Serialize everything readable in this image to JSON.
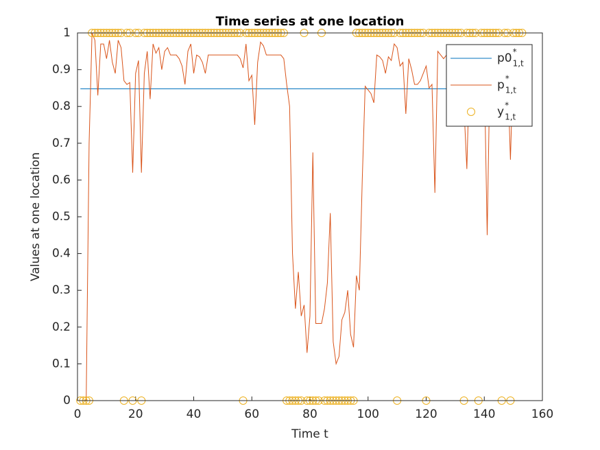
{
  "chart_data": {
    "type": "line",
    "title": "Time series at one location",
    "xlabel": "Time t",
    "ylabel": "Values at one location",
    "xlim": [
      0,
      160
    ],
    "xticks": [
      0,
      20,
      40,
      60,
      80,
      100,
      120,
      140,
      160
    ],
    "ylim": [
      0,
      1
    ],
    "yticks": [
      0,
      0.1,
      0.2,
      0.3,
      0.4,
      0.5,
      0.6,
      0.7,
      0.8,
      0.9,
      1
    ],
    "legend_location": "northeast",
    "x": [
      1,
      2,
      3,
      4,
      5,
      6,
      7,
      8,
      9,
      10,
      11,
      12,
      13,
      14,
      15,
      16,
      17,
      18,
      19,
      20,
      21,
      22,
      23,
      24,
      25,
      26,
      27,
      28,
      29,
      30,
      31,
      32,
      33,
      34,
      35,
      36,
      37,
      38,
      39,
      40,
      41,
      42,
      43,
      44,
      45,
      46,
      47,
      48,
      49,
      50,
      51,
      52,
      53,
      54,
      55,
      56,
      57,
      58,
      59,
      60,
      61,
      62,
      63,
      64,
      65,
      66,
      67,
      68,
      69,
      70,
      71,
      72,
      73,
      74,
      75,
      76,
      77,
      78,
      79,
      80,
      81,
      82,
      83,
      84,
      85,
      86,
      87,
      88,
      89,
      90,
      91,
      92,
      93,
      94,
      95,
      96,
      97,
      98,
      99,
      100,
      101,
      102,
      103,
      104,
      105,
      106,
      107,
      108,
      109,
      110,
      111,
      112,
      113,
      114,
      115,
      116,
      117,
      118,
      119,
      120,
      121,
      122,
      123,
      124,
      125,
      126,
      127,
      128,
      129,
      130,
      131,
      132,
      133,
      134,
      135,
      136,
      137,
      138,
      139,
      140,
      141,
      142,
      143,
      144,
      145,
      146,
      147,
      148,
      149,
      150,
      151,
      152,
      153
    ],
    "series": [
      {
        "name": "p0",
        "name_sup": "*",
        "name_sub": "1,t",
        "style": "line",
        "color": "#0072BD",
        "values": [
          0.848,
          0.848,
          0.848,
          0.848,
          0.848,
          0.848,
          0.848,
          0.848,
          0.848,
          0.848,
          0.848,
          0.848,
          0.848,
          0.848,
          0.848,
          0.848,
          0.848,
          0.848,
          0.848,
          0.848,
          0.848,
          0.848,
          0.848,
          0.848,
          0.848,
          0.848,
          0.848,
          0.848,
          0.848,
          0.848,
          0.848,
          0.848,
          0.848,
          0.848,
          0.848,
          0.848,
          0.848,
          0.848,
          0.848,
          0.848,
          0.848,
          0.848,
          0.848,
          0.848,
          0.848,
          0.848,
          0.848,
          0.848,
          0.848,
          0.848,
          0.848,
          0.848,
          0.848,
          0.848,
          0.848,
          0.848,
          0.848,
          0.848,
          0.848,
          0.848,
          0.848,
          0.848,
          0.848,
          0.848,
          0.848,
          0.848,
          0.848,
          0.848,
          0.848,
          0.848,
          0.848,
          0.848,
          0.848,
          0.848,
          0.848,
          0.848,
          0.848,
          0.848,
          0.848,
          0.848,
          0.848,
          0.848,
          0.848,
          0.848,
          0.848,
          0.848,
          0.848,
          0.848,
          0.848,
          0.848,
          0.848,
          0.848,
          0.848,
          0.848,
          0.848,
          0.848,
          0.848,
          0.848,
          0.848,
          0.848,
          0.848,
          0.848,
          0.848,
          0.848,
          0.848,
          0.848,
          0.848,
          0.848,
          0.848,
          0.848,
          0.848,
          0.848,
          0.848,
          0.848,
          0.848,
          0.848,
          0.848,
          0.848,
          0.848,
          0.848,
          0.848,
          0.848,
          0.848,
          0.848,
          0.848,
          0.848,
          0.848,
          0.848,
          0.848,
          0.848,
          0.848,
          0.848,
          0.848,
          0.848,
          0.848,
          0.848,
          0.848,
          0.848,
          0.848,
          0.848,
          0.848,
          0.848,
          0.848,
          0.848,
          0.848,
          0.848,
          0.848,
          0.848,
          0.848,
          0.848,
          0.848,
          0.848,
          0.848
        ]
      },
      {
        "name": "p",
        "name_sup": "*",
        "name_sub": "1,t",
        "style": "line",
        "color": "#D95319",
        "values": [
          0,
          0,
          0,
          0.7,
          1,
          0.98,
          0.83,
          0.97,
          0.97,
          0.93,
          0.98,
          0.92,
          0.89,
          0.98,
          0.96,
          0.87,
          0.86,
          0.865,
          0.62,
          0.89,
          0.925,
          0.62,
          0.89,
          0.95,
          0.82,
          0.97,
          0.945,
          0.96,
          0.9,
          0.95,
          0.96,
          0.94,
          0.94,
          0.94,
          0.93,
          0.91,
          0.86,
          0.95,
          0.97,
          0.89,
          0.94,
          0.935,
          0.92,
          0.89,
          0.94,
          0.94,
          0.94,
          0.94,
          0.94,
          0.94,
          0.94,
          0.94,
          0.94,
          0.94,
          0.94,
          0.93,
          0.905,
          0.97,
          0.87,
          0.885,
          0.75,
          0.92,
          0.975,
          0.965,
          0.94,
          0.94,
          0.94,
          0.94,
          0.94,
          0.94,
          0.93,
          0.86,
          0.8,
          0.4,
          0.25,
          0.35,
          0.23,
          0.26,
          0.13,
          0.23,
          0.675,
          0.21,
          0.21,
          0.21,
          0.25,
          0.32,
          0.51,
          0.16,
          0.1,
          0.12,
          0.22,
          0.24,
          0.3,
          0.18,
          0.145,
          0.34,
          0.3,
          0.6,
          0.855,
          0.845,
          0.835,
          0.81,
          0.94,
          0.935,
          0.925,
          0.89,
          0.935,
          0.925,
          0.97,
          0.96,
          0.91,
          0.92,
          0.78,
          0.93,
          0.9,
          0.86,
          0.86,
          0.87,
          0.89,
          0.91,
          0.85,
          0.86,
          0.565,
          0.95,
          0.94,
          0.93,
          0.94,
          0.95,
          0.92,
          0.9,
          0.93,
          0.91,
          0.8,
          0.63,
          0.93,
          0.92,
          0.93,
          0.76,
          0.9,
          0.9,
          0.45,
          0.93,
          0.94,
          0.93,
          0.92,
          0.89,
          0.88,
          0.9,
          0.655,
          0.93,
          0.94,
          0.93,
          0.93
        ]
      },
      {
        "name": "y",
        "name_sup": "*",
        "name_sub": "1,t",
        "style": "marker",
        "color": "#EDB120",
        "values": [
          0,
          0,
          0,
          0,
          1,
          1,
          1,
          1,
          1,
          1,
          1,
          1,
          1,
          1,
          1,
          0,
          1,
          1,
          0,
          1,
          1,
          0,
          1,
          1,
          1,
          1,
          1,
          1,
          1,
          1,
          1,
          1,
          1,
          1,
          1,
          1,
          1,
          1,
          1,
          1,
          1,
          1,
          1,
          1,
          1,
          1,
          1,
          1,
          1,
          1,
          1,
          1,
          1,
          1,
          1,
          1,
          0,
          1,
          1,
          1,
          1,
          1,
          1,
          1,
          1,
          1,
          1,
          1,
          1,
          1,
          1,
          0,
          0,
          0,
          0,
          0,
          0,
          1,
          0,
          0,
          0,
          0,
          0,
          1,
          0,
          0,
          0,
          0,
          0,
          0,
          0,
          0,
          0,
          0,
          0,
          1,
          1,
          1,
          1,
          1,
          1,
          1,
          1,
          1,
          1,
          1,
          1,
          1,
          1,
          0,
          1,
          1,
          1,
          1,
          1,
          1,
          1,
          1,
          1,
          0,
          1,
          1,
          1,
          1,
          1,
          1,
          1,
          1,
          1,
          1,
          1,
          1,
          0,
          1,
          1,
          1,
          1,
          0,
          1,
          1,
          1,
          1,
          1,
          1,
          1,
          0,
          1,
          1,
          0,
          1,
          1,
          1,
          1
        ]
      }
    ]
  }
}
